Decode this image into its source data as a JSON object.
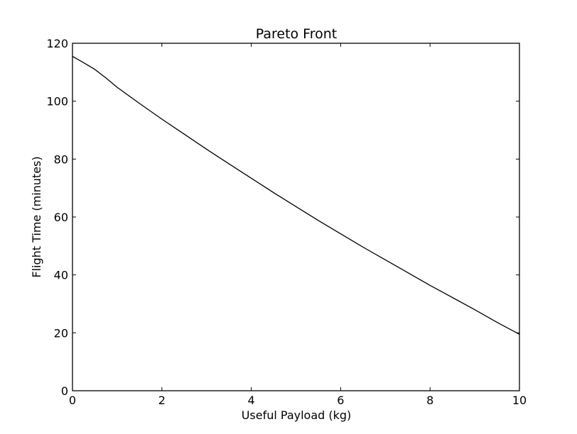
{
  "chart_data": {
    "type": "line",
    "title": "Pareto Front",
    "xlabel": "Useful Payload (kg)",
    "ylabel": "Flight Time (minutes)",
    "xlim": [
      0,
      10
    ],
    "ylim": [
      0,
      120
    ],
    "xticks": [
      0,
      2,
      4,
      6,
      8,
      10
    ],
    "yticks": [
      0,
      20,
      40,
      60,
      80,
      100,
      120
    ],
    "grid": false,
    "colors": {
      "line": "#000000",
      "frame": "#000000",
      "background": "#ffffff"
    },
    "series": [
      {
        "x": [
          0,
          0.25,
          0.5,
          0.75,
          1,
          1.5,
          2,
          2.5,
          3,
          3.5,
          4,
          4.5,
          5,
          5.5,
          6,
          6.5,
          7,
          7.5,
          8,
          8.5,
          9,
          9.5,
          10
        ],
        "y": [
          115.5,
          113.3,
          111,
          108,
          104.8,
          99.2,
          93.8,
          88.6,
          83.4,
          78.4,
          73.4,
          68.4,
          63.6,
          58.8,
          54.2,
          49.6,
          45.2,
          40.8,
          36.4,
          32.2,
          28,
          23.6,
          19.5
        ]
      }
    ]
  }
}
